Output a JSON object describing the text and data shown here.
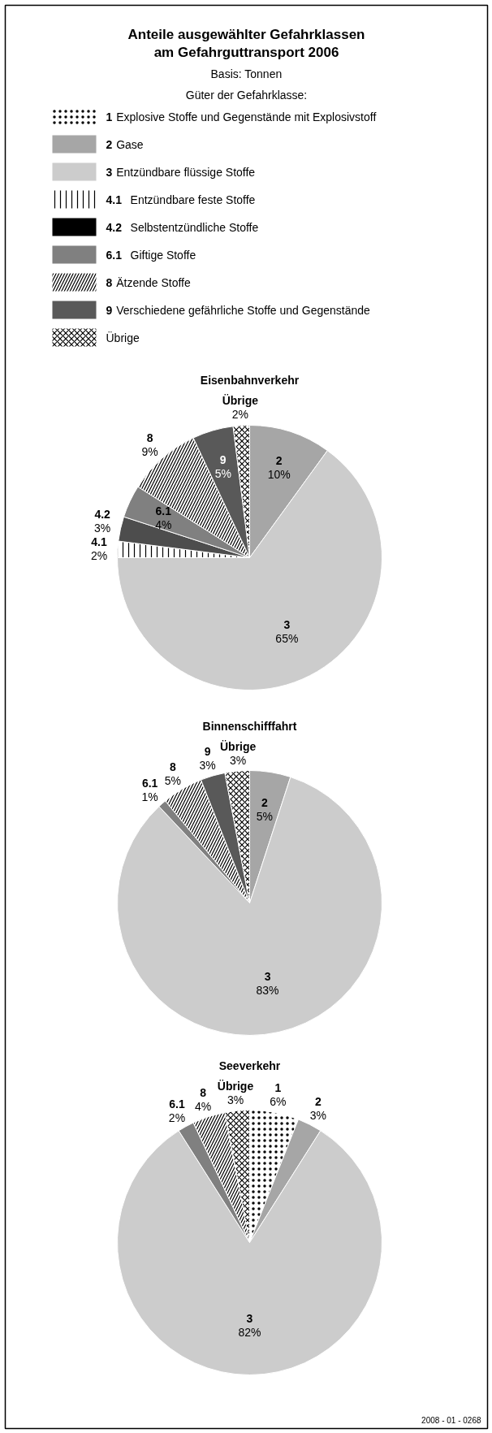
{
  "chart_data": [
    {
      "type": "other",
      "title": "Anteile ausgewählter Gefahrklassen\nam Gefahrguttransport 2006",
      "subtitle": "Basis: Tonnen",
      "categories": [
        "1 Explosive Stoffe und Gegenstände mit Explosivstoff",
        "2 Gase",
        "3 Entzündbare flüssige Stoffe",
        "4.1 Entzündbare feste Stoffe",
        "4.2 Selbstentzündliche Stoffe",
        "6.1 Giftige Stoffe",
        "8 Ätzende Stoffe",
        "9 Verschiedene gefährliche Stoffe und Gegenstände",
        "Übrige"
      ],
      "colors": [
        "#ffffff",
        "#a6a6a6",
        "#cccccc",
        "#ffffff",
        "#000000",
        "#808080",
        "#ffffff",
        "#595959",
        "#ffffff"
      ],
      "annotations": [
        "2008 - 01 - 0268"
      ]
    },
    {
      "type": "pie",
      "title": "Eisenbahnverkehr",
      "legend": "top",
      "legend_title": "Güter der Gefahrklasse:",
      "categories": [
        "2",
        "3",
        "4.1",
        "4.2",
        "6.1",
        "8",
        "9",
        "Übrige"
      ],
      "values": [
        10,
        65,
        2,
        3,
        4,
        9,
        5,
        2
      ],
      "value_labels": [
        "10%",
        "65%",
        "2%",
        "3%",
        "4%",
        "9%",
        "5%",
        "2%"
      ],
      "colors": [
        "#a6a6a6",
        "#cccccc",
        "#ffffff",
        "#4d4d4d",
        "#808080",
        "#ffffff",
        "#595959",
        "#ffffff"
      ]
    },
    {
      "type": "pie",
      "title": "Binnenschifffahrt",
      "categories": [
        "2",
        "3",
        "6.1",
        "8",
        "9",
        "Übrige"
      ],
      "values": [
        5,
        83,
        1,
        5,
        3,
        3
      ],
      "value_labels": [
        "5%",
        "83%",
        "1%",
        "5%",
        "3%",
        "3%"
      ],
      "colors": [
        "#a6a6a6",
        "#cccccc",
        "#808080",
        "#ffffff",
        "#595959",
        "#ffffff"
      ]
    },
    {
      "type": "pie",
      "title": "Seeverkehr",
      "categories": [
        "1",
        "2",
        "3",
        "6.1",
        "8",
        "Übrige"
      ],
      "values": [
        6,
        3,
        82,
        2,
        4,
        3
      ],
      "value_labels": [
        "6%",
        "3%",
        "82%",
        "2%",
        "4%",
        "3%"
      ],
      "colors": [
        "#ffffff",
        "#a6a6a6",
        "#cccccc",
        "#808080",
        "#ffffff",
        "#ffffff"
      ]
    }
  ]
}
